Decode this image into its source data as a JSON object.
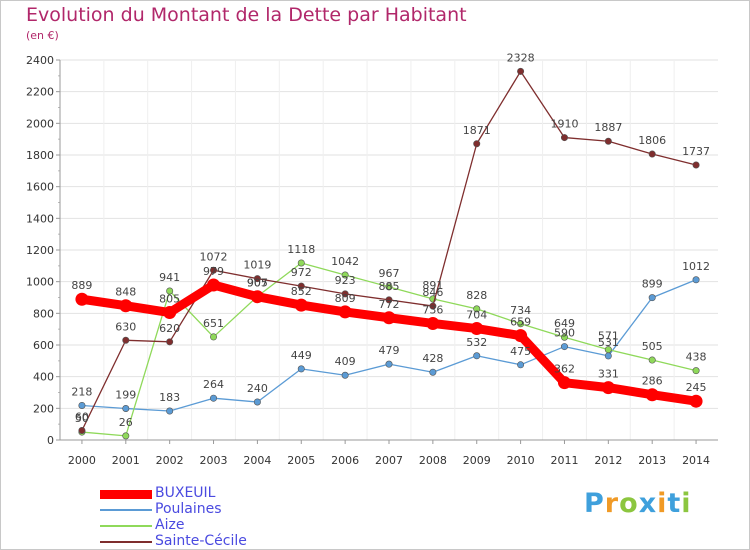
{
  "title": "Evolution du Montant de la Dette par Habitant",
  "subtitle": "(en €)",
  "brand": {
    "letters": [
      "P",
      "r",
      "o",
      "x",
      "i",
      "t",
      "i"
    ],
    "colors": [
      "#3fa0dc",
      "#f09a26",
      "#8cc63f",
      "#3fa0dc",
      "#f09a26",
      "#3fa0dc",
      "#8cc63f"
    ]
  },
  "chart_data": {
    "type": "line",
    "x": [
      "2000",
      "2001",
      "2002",
      "2003",
      "2004",
      "2005",
      "2006",
      "2007",
      "2008",
      "2009",
      "2010",
      "2011",
      "2012",
      "2013",
      "2014"
    ],
    "yticks": [
      "0",
      "200",
      "400",
      "600",
      "800",
      "1000",
      "1200",
      "1400",
      "1600",
      "1800",
      "2000",
      "2200",
      "2400"
    ],
    "ylim": [
      0,
      2400
    ],
    "grid": true,
    "legend_position": "bottom-left",
    "series": [
      {
        "name": "BUXEUIL",
        "color": "#ff0000",
        "values": [
          889,
          848,
          805,
          979,
          905,
          852,
          809,
          772,
          736,
          704,
          659,
          362,
          331,
          286,
          245
        ],
        "labels": [
          "889",
          "848",
          "805",
          "979",
          "905",
          "852",
          "809",
          "772",
          "736",
          "704",
          "659",
          "362",
          "331",
          "286",
          "245"
        ]
      },
      {
        "name": "Poulaines",
        "color": "#5b9bd5",
        "values": [
          218,
          199,
          183,
          264,
          240,
          449,
          409,
          479,
          428,
          532,
          475,
          590,
          531,
          899,
          1012
        ],
        "labels": [
          "218",
          "199",
          "183",
          "264",
          "240",
          "449",
          "409",
          "479",
          "428",
          "532",
          "475",
          "590",
          "531",
          "899",
          "1012"
        ]
      },
      {
        "name": "Aize",
        "color": "#8fd95a",
        "values": [
          50,
          26,
          941,
          651,
          907,
          1118,
          1042,
          967,
          891,
          828,
          734,
          649,
          571,
          505,
          438
        ],
        "labels": [
          "50",
          "26",
          "941",
          "651",
          "907",
          "1118",
          "1042",
          "967",
          "891",
          "828",
          "734",
          "649",
          "571",
          "505",
          "438"
        ]
      },
      {
        "name": "Sainte-Cécile",
        "color": "#7f2e2e",
        "values": [
          60,
          630,
          620,
          1072,
          1019,
          972,
          923,
          885,
          846,
          1871,
          2328,
          1910,
          1887,
          1806,
          1737
        ],
        "labels": [
          "60",
          "630",
          "620",
          "1072",
          "1019",
          "972",
          "923",
          "885",
          "846",
          "1871",
          "2328",
          "1910",
          "1887",
          "1806",
          "1737"
        ]
      }
    ]
  }
}
